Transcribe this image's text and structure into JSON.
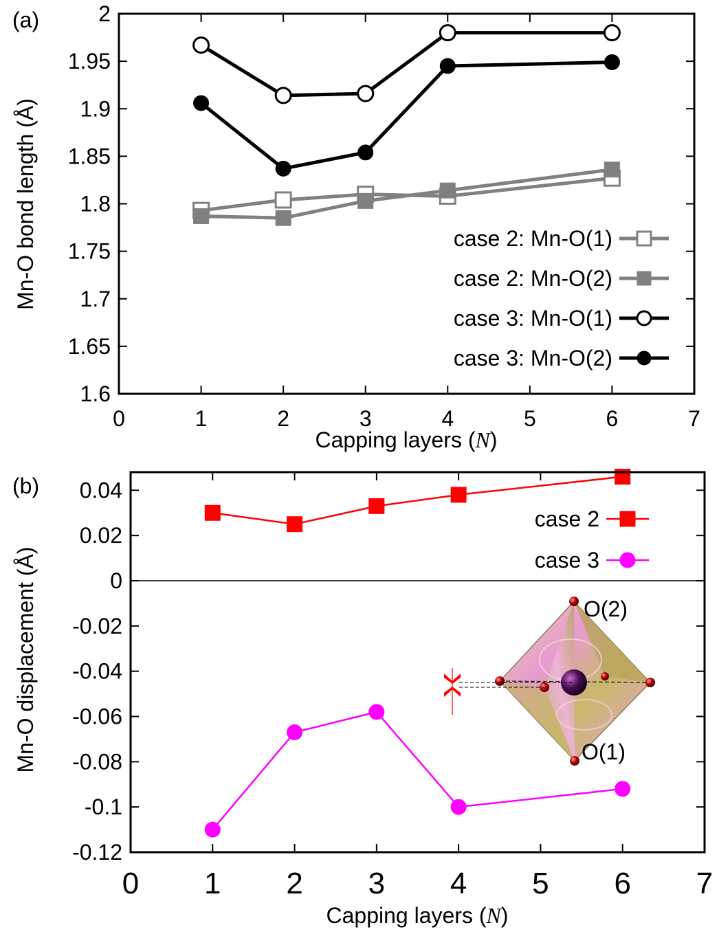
{
  "chart_data": [
    {
      "type": "line",
      "panel_label": "(a)",
      "xlabel_prefix": "Capping layers (",
      "xlabel_var": "N",
      "xlabel_suffix": ")",
      "ylabel": "Mn-O bond length (Å)",
      "xlim": [
        0,
        7
      ],
      "ylim": [
        1.6,
        2.0
      ],
      "xticks": [
        "0",
        "1",
        "2",
        "3",
        "4",
        "5",
        "6",
        "7"
      ],
      "yticks": [
        "1.6",
        "1.65",
        "1.7",
        "1.75",
        "1.8",
        "1.85",
        "1.9",
        "1.95",
        "2"
      ],
      "legend_position": "lower-right",
      "x": [
        1,
        2,
        3,
        4,
        6
      ],
      "series": [
        {
          "name": "case 2: Mn-O(1)",
          "values": [
            1.793,
            1.804,
            1.81,
            1.808,
            1.827
          ],
          "color": "#808080",
          "marker": "open-square"
        },
        {
          "name": "case 2: Mn-O(2)",
          "values": [
            1.787,
            1.785,
            1.803,
            1.814,
            1.836
          ],
          "color": "#808080",
          "marker": "filled-square"
        },
        {
          "name": "case 3: Mn-O(1)",
          "values": [
            1.967,
            1.914,
            1.916,
            1.98,
            1.98
          ],
          "color": "#000000",
          "marker": "open-circle"
        },
        {
          "name": "case 3: Mn-O(2)",
          "values": [
            1.906,
            1.837,
            1.854,
            1.945,
            1.949
          ],
          "color": "#000000",
          "marker": "filled-circle"
        }
      ]
    },
    {
      "type": "line",
      "panel_label": "(b)",
      "xlabel_prefix": "Capping layers (",
      "xlabel_var": "N",
      "xlabel_suffix": ")",
      "ylabel": "Mn-O displacement (Å)",
      "xlim": [
        0,
        7
      ],
      "ylim": [
        -0.12,
        0.048
      ],
      "xticks": [
        "0",
        "1",
        "2",
        "3",
        "4",
        "5",
        "6",
        "7"
      ],
      "yticks": [
        "-0.12",
        "-0.1",
        "-0.08",
        "-0.06",
        "-0.04",
        "-0.02",
        "0",
        "0.02",
        "0.04"
      ],
      "legend_position": "top-right",
      "zero_line": true,
      "x": [
        1,
        2,
        3,
        4,
        6
      ],
      "series": [
        {
          "name": "case 2",
          "values": [
            0.03,
            0.025,
            0.033,
            0.038,
            0.046
          ],
          "color": "#ff0000",
          "marker": "filled-square"
        },
        {
          "name": "case 3",
          "values": [
            -0.11,
            -0.067,
            -0.058,
            -0.1,
            -0.092
          ],
          "color": "#ff00ff",
          "marker": "filled-circle"
        }
      ],
      "inset": {
        "label_top": "O(2)",
        "label_bottom": "O(1)",
        "icon": "octahedron-icon"
      }
    }
  ]
}
